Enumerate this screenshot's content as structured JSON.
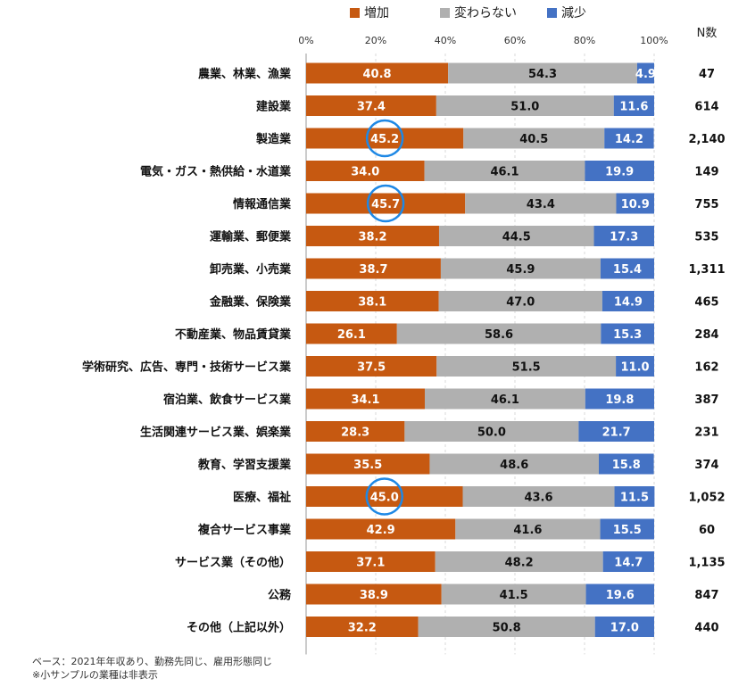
{
  "chart_data": {
    "type": "bar",
    "stacked": true,
    "orientation": "horizontal",
    "legend": [
      {
        "name": "増加",
        "color": "#c65911"
      },
      {
        "name": "変わらない",
        "color": "#b0b0b0"
      },
      {
        "name": "減少",
        "color": "#4472c4"
      }
    ],
    "legend_position": "top",
    "n_header": "N数",
    "xlim": [
      0,
      100
    ],
    "xticks": [
      "0%",
      "20%",
      "40%",
      "60%",
      "80%",
      "100%"
    ],
    "categories": [
      "農業、林業、漁業",
      "建設業",
      "製造業",
      "電気・ガス・熱供給・水道業",
      "情報通信業",
      "運輸業、郵便業",
      "卸売業、小売業",
      "金融業、保険業",
      "不動産業、物品賃貸業",
      "学術研究、広告、専門・技術サービス業",
      "宿泊業、飲食サービス業",
      "生活関連サービス業、娯楽業",
      "教育、学習支援業",
      "医療、福祉",
      "複合サービス事業",
      "サービス業（その他）",
      "公務",
      "その他（上記以外）"
    ],
    "series": [
      {
        "name": "増加",
        "values": [
          40.8,
          37.4,
          45.2,
          34.0,
          45.7,
          38.2,
          38.7,
          38.1,
          26.1,
          37.5,
          34.1,
          28.3,
          35.5,
          45.0,
          42.9,
          37.1,
          38.9,
          32.2
        ]
      },
      {
        "name": "変わらない",
        "values": [
          54.3,
          51.0,
          40.5,
          46.1,
          43.4,
          44.5,
          45.9,
          47.0,
          58.6,
          51.5,
          46.1,
          50.0,
          48.6,
          43.6,
          41.6,
          48.2,
          41.5,
          50.8
        ]
      },
      {
        "name": "減少",
        "values": [
          4.9,
          11.6,
          14.2,
          19.9,
          10.9,
          17.3,
          15.4,
          14.9,
          15.3,
          11.0,
          19.8,
          21.7,
          15.8,
          11.5,
          15.5,
          14.7,
          19.6,
          17.0
        ]
      }
    ],
    "n_values": [
      "47",
      "614",
      "2,140",
      "149",
      "755",
      "535",
      "1,311",
      "465",
      "284",
      "162",
      "387",
      "231",
      "374",
      "1,052",
      "60",
      "1,135",
      "847",
      "440"
    ],
    "highlighted_categories": [
      "製造業",
      "情報通信業",
      "医療、福祉"
    ],
    "highlight_color": "#1e88e5",
    "grid": true
  },
  "footnotes": [
    "ベース：2021年年収あり、勤務先同じ、雇用形態同じ",
    "※小サンプルの業種は非表示"
  ]
}
